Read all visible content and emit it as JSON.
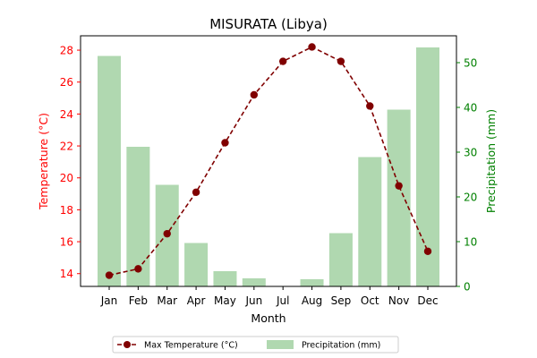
{
  "chart_data": {
    "type": "bar+line",
    "title": "MISURATA (Libya)",
    "xlabel": "Month",
    "categories": [
      "Jan",
      "Feb",
      "Mar",
      "Apr",
      "May",
      "Jun",
      "Jul",
      "Aug",
      "Sep",
      "Oct",
      "Nov",
      "Dec"
    ],
    "left_axis": {
      "label": "Temperature (°C)",
      "color": "#ff0000",
      "ylim": [
        13.2,
        28.9
      ],
      "ticks": [
        14,
        16,
        18,
        20,
        22,
        24,
        26,
        28
      ]
    },
    "right_axis": {
      "label": "Precipitation (mm)",
      "color": "#008000",
      "ylim": [
        0,
        56
      ],
      "ticks": [
        0,
        10,
        20,
        30,
        40,
        50
      ]
    },
    "series": [
      {
        "name": "Max Temperature (°C)",
        "type": "line",
        "axis": "left",
        "color": "#800000",
        "values": [
          13.9,
          14.3,
          16.5,
          19.1,
          22.2,
          25.2,
          27.3,
          28.2,
          27.3,
          24.5,
          19.5,
          15.4
        ]
      },
      {
        "name": "Precipitation (mm)",
        "type": "bar",
        "axis": "right",
        "color": "#b0d8b0",
        "values": [
          51.5,
          31.2,
          22.7,
          9.7,
          3.4,
          1.8,
          0.0,
          1.6,
          11.9,
          28.9,
          39.5,
          53.4
        ]
      }
    ],
    "legend_position": "bottom-center",
    "grid": false
  }
}
